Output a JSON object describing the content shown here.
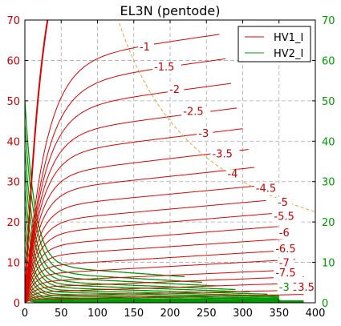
{
  "chart_data": {
    "type": "line",
    "title": "EL3N (pentode)",
    "xlabel": "",
    "ylabel": "",
    "xlim": [
      0,
      400
    ],
    "ylim": [
      0,
      70
    ],
    "x_ticks": [
      "0",
      "50",
      "100",
      "150",
      "200",
      "250",
      "300",
      "350",
      "400"
    ],
    "y_ticks_left": [
      "0",
      "10",
      "20",
      "30",
      "40",
      "50",
      "60",
      "70"
    ],
    "y_ticks_right": [
      "0",
      "10",
      "20",
      "30",
      "40",
      "50",
      "60",
      "70"
    ],
    "grid": true,
    "legend": {
      "placement": "top-right",
      "entries": [
        {
          "name": "HV1_I",
          "color": "#dd0000"
        },
        {
          "name": "HV2_I",
          "color": "#009900"
        }
      ]
    },
    "colors": {
      "ia_curves": "#dd0000",
      "ig2_curves": "#009900",
      "dissipation": "#e8a030",
      "left_axis": "#cc0000",
      "right_axis": "#009900"
    },
    "series": [
      {
        "name": "HV1_I",
        "color": "#dd0000",
        "curves": [
          {
            "label": "",
            "knee": 25,
            "i0": 98,
            "slope": 0
          },
          {
            "label": "-1",
            "knee": 28,
            "i0": 59.5,
            "slope": 0.026
          },
          {
            "label": "-1.5",
            "knee": 28,
            "i0": 53.5,
            "slope": 0.025
          },
          {
            "label": "-2",
            "knee": 26,
            "i0": 47.5,
            "slope": 0.024
          },
          {
            "label": "-2.5",
            "knee": 24,
            "i0": 41.5,
            "slope": 0.023
          },
          {
            "label": "-3",
            "knee": 22,
            "i0": 36.5,
            "slope": 0.022
          },
          {
            "label": "-3.5",
            "knee": 20,
            "i0": 31.5,
            "slope": 0.021
          },
          {
            "label": "-4",
            "knee": 19,
            "i0": 27.5,
            "slope": 0.019
          },
          {
            "label": "-4.5",
            "knee": 18,
            "i0": 23.5,
            "slope": 0.017
          },
          {
            "label": "-5",
            "knee": 17,
            "i0": 20.0,
            "slope": 0.016
          },
          {
            "label": "-5.5",
            "knee": 16,
            "i0": 17.0,
            "slope": 0.015
          },
          {
            "label": "-6",
            "knee": 15,
            "i0": 14.0,
            "slope": 0.014
          },
          {
            "label": "-6.5",
            "knee": 14,
            "i0": 11.5,
            "slope": 0.012
          },
          {
            "label": "-7",
            "knee": 13,
            "i0": 9.0,
            "slope": 0.011
          },
          {
            "label": "-7.5",
            "knee": 12,
            "i0": 7.0,
            "slope": 0.01
          },
          {
            "label": "",
            "knee": 11,
            "i0": 5.2,
            "slope": 0.008
          },
          {
            "label": "",
            "knee": 10,
            "i0": 3.8,
            "slope": 0.007
          },
          {
            "label": "",
            "knee": 9,
            "i0": 2.6,
            "slope": 0.006
          },
          {
            "label": "",
            "knee": 8,
            "i0": 1.6,
            "slope": 0.004
          },
          {
            "label": "",
            "knee": 7,
            "i0": 0.9,
            "slope": 0.003
          }
        ]
      },
      {
        "name": "HV2_I",
        "color": "#009900",
        "curves": [
          {
            "label": "",
            "peak": 50,
            "tail": 8.5,
            "decay": 14,
            "end": 220
          },
          {
            "label": "",
            "peak": 44,
            "tail": 7.0,
            "decay": 14,
            "end": 245
          },
          {
            "label": "",
            "peak": 38,
            "tail": 6.0,
            "decay": 13,
            "end": 265
          },
          {
            "label": "",
            "peak": 33,
            "tail": 5.0,
            "decay": 13,
            "end": 290
          },
          {
            "label": "",
            "peak": 28,
            "tail": 4.3,
            "decay": 12,
            "end": 310
          },
          {
            "label": "",
            "peak": 24,
            "tail": 3.6,
            "decay": 12,
            "end": 335
          },
          {
            "label": "",
            "peak": 20,
            "tail": 3.0,
            "decay": 11,
            "end": 350
          },
          {
            "label": "",
            "peak": 17,
            "tail": 2.5,
            "decay": 11,
            "end": 350
          },
          {
            "label": "",
            "peak": 14,
            "tail": 2.0,
            "decay": 10,
            "end": 350
          },
          {
            "label": "",
            "peak": 11.5,
            "tail": 1.6,
            "decay": 10,
            "end": 350
          },
          {
            "label": "",
            "peak": 9,
            "tail": 1.2,
            "decay": 9,
            "end": 350
          },
          {
            "label": "",
            "peak": 7,
            "tail": 0.9,
            "decay": 9,
            "end": 385
          },
          {
            "label": "-3",
            "peak": 5.5,
            "tail": 0.7,
            "decay": 8,
            "end": 385
          },
          {
            "label": "",
            "peak": 4,
            "tail": 0.45,
            "decay": 8,
            "end": 385
          },
          {
            "label": "",
            "peak": 3,
            "tail": 0.3,
            "decay": 7,
            "end": 385
          },
          {
            "label": "",
            "peak": 2,
            "tail": 0.2,
            "decay": 7,
            "end": 385
          },
          {
            "label": "",
            "peak": 1.2,
            "tail": 0.1,
            "decay": 6,
            "end": 385
          }
        ]
      }
    ],
    "labels_ia": [
      {
        "text": "-1",
        "x": 158,
        "y": 62.5
      },
      {
        "text": "-1.5",
        "x": 178,
        "y": 57.5
      },
      {
        "text": "-2",
        "x": 199,
        "y": 52
      },
      {
        "text": "-2.5",
        "x": 218,
        "y": 46.5
      },
      {
        "text": "-3",
        "x": 239,
        "y": 41
      },
      {
        "text": "-3.5",
        "x": 258,
        "y": 36
      },
      {
        "text": "-4",
        "x": 279,
        "y": 31
      },
      {
        "text": "-4.5",
        "x": 318,
        "y": 27.5
      },
      {
        "text": "-5",
        "x": 348,
        "y": 24
      },
      {
        "text": "-5.5",
        "x": 343,
        "y": 20.5
      },
      {
        "text": "-6",
        "x": 350,
        "y": 16.5
      },
      {
        "text": "-6.5",
        "x": 345,
        "y": 12.5
      },
      {
        "text": "-7",
        "x": 350,
        "y": 9
      },
      {
        "text": "-7.5",
        "x": 345,
        "y": 6.5
      }
    ],
    "labels_ig2": [
      {
        "text": "-3",
        "x": 350,
        "y": 3
      },
      {
        "text": "3.5",
        "x": 376,
        "y": 3
      }
    ],
    "dissipation_watts": 9
  }
}
